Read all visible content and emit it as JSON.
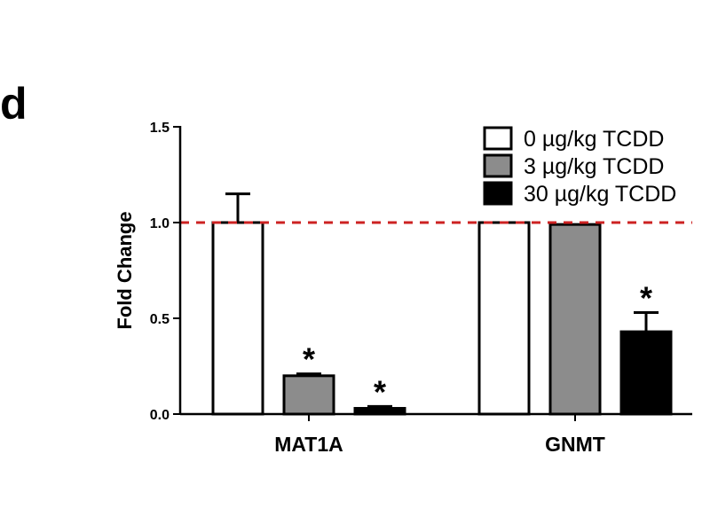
{
  "panel_label": "d",
  "chart_data": {
    "type": "bar",
    "ylabel": "Fold Change",
    "xlabel": "",
    "ylim": [
      0,
      1.5
    ],
    "yticks": [
      "0.0",
      "0.5",
      "1.0",
      "1.5"
    ],
    "categories": [
      "MAT1A",
      "GNMT"
    ],
    "series": [
      {
        "name": "0 µg/kg TCDD",
        "color": "#ffffff",
        "values": [
          1.0,
          1.0
        ],
        "errors": [
          0.15,
          0.0
        ]
      },
      {
        "name": "3 µg/kg TCDD",
        "color": "#8c8c8c",
        "values": [
          0.2,
          0.99
        ],
        "errors": [
          0.01,
          0.0
        ]
      },
      {
        "name": "30 µg/kg TCDD",
        "color": "#000000",
        "values": [
          0.03,
          0.43
        ],
        "errors": [
          0.01,
          0.1
        ]
      }
    ],
    "significance": [
      {
        "category": "MAT1A",
        "series": 1,
        "label": "*"
      },
      {
        "category": "MAT1A",
        "series": 2,
        "label": "*"
      },
      {
        "category": "GNMT",
        "series": 2,
        "label": "*"
      }
    ],
    "reference_line": {
      "y": 1.0,
      "style": "dashed",
      "color": "#cc2222"
    },
    "legend_position": "top-right",
    "grid": false
  }
}
